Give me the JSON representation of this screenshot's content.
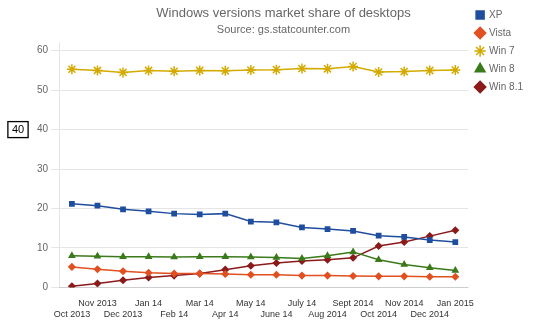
{
  "chart_data": {
    "type": "line",
    "title": "Windows versions market share of desktops",
    "subtitle": "Source: gs.statcounter.com",
    "categories": [
      "Oct 2013",
      "Nov 2013",
      "Dec 2013",
      "Jan 14",
      "Feb 14",
      "Mar 14",
      "Apr 14",
      "May 14",
      "June 14",
      "July 14",
      "Aug 2014",
      "Sept 2014",
      "Oct 2014",
      "Nov 2014",
      "Dec 2014",
      "Jan 2015"
    ],
    "series": [
      {
        "name": "XP",
        "color": "#1f4e9e",
        "marker": "square",
        "values": [
          21.2,
          20.7,
          19.8,
          19.3,
          18.7,
          18.5,
          18.7,
          16.7,
          16.5,
          15.2,
          14.8,
          14.3,
          13.1,
          12.8,
          12.0,
          11.5
        ]
      },
      {
        "name": "Vista",
        "color": "#e05020",
        "marker": "diamond",
        "values": [
          5.2,
          4.6,
          4.1,
          3.7,
          3.5,
          3.5,
          3.4,
          3.2,
          3.2,
          3.0,
          3.0,
          2.9,
          2.8,
          2.8,
          2.7,
          2.7
        ]
      },
      {
        "name": "Win 7",
        "color": "#d4aa00",
        "marker": "star",
        "values": [
          55.3,
          55.0,
          54.5,
          55.0,
          54.8,
          55.0,
          54.9,
          55.1,
          55.2,
          55.5,
          55.4,
          56.0,
          54.6,
          54.7,
          55.0,
          55.1
        ]
      },
      {
        "name": "Win 8",
        "color": "#3a7a1a",
        "marker": "triangle",
        "values": [
          8.0,
          7.9,
          7.8,
          7.8,
          7.7,
          7.8,
          7.8,
          7.7,
          7.6,
          7.3,
          8.0,
          9.0,
          7.0,
          5.8,
          5.0,
          4.3
        ]
      },
      {
        "name": "Win 8.1",
        "color": "#8b1a1a",
        "marker": "diamond",
        "values": [
          0.3,
          1.0,
          1.8,
          2.5,
          3.0,
          3.5,
          4.5,
          5.5,
          6.2,
          6.7,
          7.0,
          7.5,
          10.5,
          11.5,
          13.0,
          14.5
        ]
      }
    ],
    "ylim": [
      0,
      62
    ],
    "yticks": [
      0,
      10,
      20,
      30,
      40,
      50,
      60
    ],
    "grid": true,
    "legend": "right",
    "annotations": [
      {
        "text": "40",
        "y": 40
      }
    ]
  }
}
